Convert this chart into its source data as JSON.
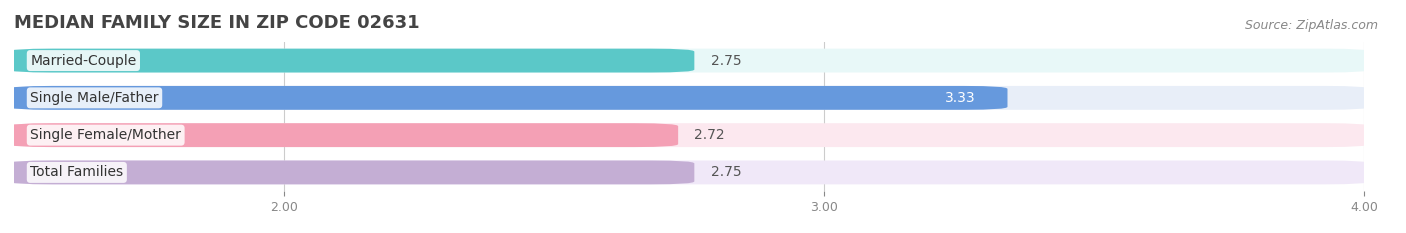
{
  "title": "MEDIAN FAMILY SIZE IN ZIP CODE 02631",
  "source": "Source: ZipAtlas.com",
  "categories": [
    "Married-Couple",
    "Single Male/Father",
    "Single Female/Mother",
    "Total Families"
  ],
  "values": [
    2.75,
    3.33,
    2.72,
    2.75
  ],
  "bar_colors": [
    "#5bc8c8",
    "#6699dd",
    "#f4a0b5",
    "#c4aed4"
  ],
  "bar_bg_colors": [
    "#e8f8f8",
    "#e8eef8",
    "#fce8ef",
    "#f0e8f8"
  ],
  "value_inside": [
    false,
    true,
    false,
    false
  ],
  "xlim": [
    1.5,
    4.0
  ],
  "xticks": [
    2.0,
    3.0,
    4.0
  ],
  "xtick_labels": [
    "2.00",
    "3.00",
    "4.00"
  ],
  "figsize": [
    14.06,
    2.33
  ],
  "dpi": 100,
  "title_fontsize": 13,
  "bar_height": 0.62,
  "label_fontsize": 10,
  "value_fontsize": 10,
  "source_fontsize": 9
}
